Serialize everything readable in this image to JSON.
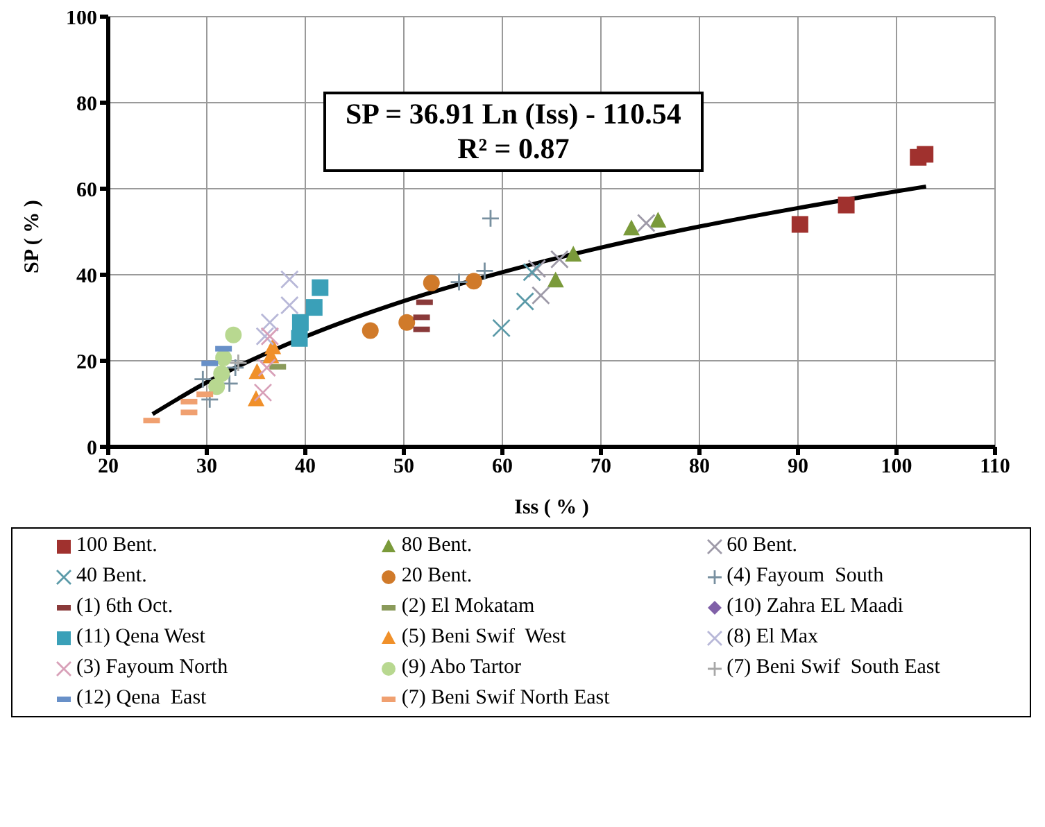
{
  "chart_data": {
    "type": "scatter",
    "xlabel": "Iss ( % )",
    "ylabel": "SP ( % )",
    "xlim": [
      20,
      110
    ],
    "xticks": [
      20,
      30,
      40,
      50,
      60,
      70,
      80,
      90,
      100,
      110
    ],
    "ylim": [
      0,
      100
    ],
    "yticks": [
      0,
      20,
      40,
      60,
      80,
      100
    ],
    "grid": true,
    "legend": "bottom",
    "annotations": [
      "SP = 36.91 Ln (Iss) - 110.54",
      "R² = 0.87"
    ],
    "series": [
      {
        "name": "100 Bent.",
        "color": "#a0312e",
        "marker": "square",
        "x": [
          90.2,
          94.9,
          102.2,
          102.9
        ],
        "values": [
          51.7,
          56.2,
          67.3,
          68.0
        ]
      },
      {
        "name": "80 Bent.",
        "color": "#7a9a3a",
        "marker": "triangle",
        "x": [
          65.4,
          67.2,
          73.1,
          75.8
        ],
        "values": [
          38.6,
          44.6,
          50.7,
          52.5
        ]
      },
      {
        "name": "60 Bent.",
        "color": "#9e9aa8",
        "marker": "cross",
        "x": [
          63.9,
          65.8,
          74.6,
          63.5
        ],
        "values": [
          35.2,
          43.6,
          52.0,
          41.4
        ]
      },
      {
        "name": "40 Bent.",
        "color": "#5b9aa8",
        "marker": "cross",
        "x": [
          59.9,
          62.3,
          63.0
        ],
        "values": [
          27.6,
          33.8,
          40.6
        ]
      },
      {
        "name": "20 Bent.",
        "color": "#d07a2a",
        "marker": "circle",
        "x": [
          46.6,
          50.3,
          52.8,
          57.1
        ],
        "values": [
          27.0,
          28.9,
          38.1,
          38.5
        ]
      },
      {
        "name": "(4) Fayoum  South",
        "color": "#7890a0",
        "marker": "plus",
        "x": [
          32.3,
          32.9,
          30.3,
          29.6,
          58.8,
          55.6,
          58.2
        ],
        "values": [
          14.7,
          18.4,
          11.0,
          15.7,
          53.1,
          38.3,
          40.9
        ]
      },
      {
        "name": "(1) 6th Oct.",
        "color": "#8a3a3a",
        "x": [
          52.1,
          51.8,
          51.8
        ],
        "values": [
          33.6,
          30.1,
          27.3
        ]
      },
      {
        "name": "(2) El Mokatam",
        "color": "#8a9a5a",
        "x": [
          37.2
        ],
        "values": [
          18.6
        ]
      },
      {
        "name": "(10) Zahra EL Maadi",
        "color": "#8060a8",
        "marker": "diamond"
      },
      {
        "name": "(11) Qena West",
        "color": "#3aa0b8",
        "marker": "square",
        "x": [
          41.5,
          40.9,
          39.5,
          39.4
        ],
        "values": [
          37.0,
          32.4,
          28.9,
          25.2
        ]
      },
      {
        "name": "(5) Beni Swif  West",
        "color": "#f0902a",
        "marker": "triangle",
        "x": [
          35.1,
          35.0,
          36.7,
          36.5
        ],
        "values": [
          17.3,
          11.0,
          23.1,
          21.0
        ]
      },
      {
        "name": "(8) El Max",
        "color": "#b8b8d8",
        "marker": "cross",
        "x": [
          38.4,
          38.4,
          36.4,
          35.9
        ],
        "values": [
          38.9,
          32.9,
          28.9,
          25.7
        ]
      },
      {
        "name": "(3) Fayoum North",
        "color": "#d8a0b8",
        "marker": "cross",
        "x": [
          35.7,
          36.4,
          36.1
        ],
        "values": [
          12.6,
          25.7,
          18.4
        ]
      },
      {
        "name": "(9) Abo Tartor",
        "color": "#b8d890",
        "marker": "circle",
        "x": [
          32.7,
          31.7,
          31.5,
          31.0
        ],
        "values": [
          26.0,
          20.7,
          17.0,
          14.0
        ]
      },
      {
        "name": "(7) Beni Swif  South East",
        "color": "#a8a8a8",
        "marker": "plus",
        "x": [
          33.2
        ],
        "values": [
          19.5
        ]
      },
      {
        "name": "(12) Qena  East",
        "color": "#6890c8",
        "x": [
          31.7,
          30.3
        ],
        "values": [
          22.8,
          19.4
        ]
      },
      {
        "name": "(7) Beni Swif North East",
        "color": "#f0a070",
        "x": [
          28.2,
          28.2,
          24.4,
          29.8
        ],
        "values": [
          10.5,
          8.0,
          6.1,
          12.2
        ]
      },
      {
        "type": "line",
        "color": "#000000",
        "marker": "none",
        "x": [
          24.5,
          30,
          40,
          50,
          60,
          70,
          80,
          90,
          103
        ],
        "values": [
          7.6,
          15.0,
          25.6,
          33.9,
          40.6,
          46.3,
          51.2,
          55.5,
          60.5
        ]
      }
    ]
  }
}
